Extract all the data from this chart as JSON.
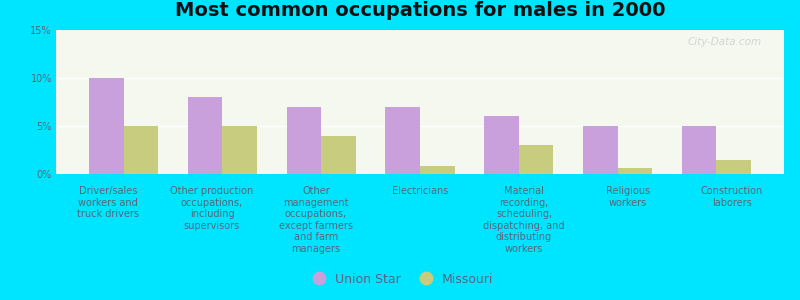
{
  "title": "Most common occupations for males in 2000",
  "categories": [
    "Driver/sales\nworkers and\ntruck drivers",
    "Other production\noccupations,\nincluding\nsupervisors",
    "Other\nmanagement\noccupations,\nexcept farmers\nand farm\nmanagers",
    "Electricians",
    "Material\nrecording,\nscheduling,\ndispatching, and\ndistributing\nworkers",
    "Religious\nworkers",
    "Construction\nlaborers"
  ],
  "union_star_values": [
    10.0,
    8.0,
    7.0,
    7.0,
    6.0,
    5.0,
    5.0
  ],
  "missouri_values": [
    5.0,
    5.0,
    4.0,
    0.8,
    3.0,
    0.6,
    1.5
  ],
  "union_star_color": "#c9a0dc",
  "missouri_color": "#c8cc7f",
  "background_outer": "#00e5ff",
  "background_plot_top": "#e8f0d8",
  "background_plot_bottom": "#f5f8ee",
  "ylim": [
    0,
    15
  ],
  "yticks": [
    0,
    5,
    10,
    15
  ],
  "ytick_labels": [
    "0%",
    "5%",
    "10%",
    "15%"
  ],
  "bar_width": 0.35,
  "legend_label_1": "Union Star",
  "legend_label_2": "Missouri",
  "title_fontsize": 14,
  "tick_fontsize": 7.0,
  "legend_fontsize": 9,
  "watermark": "City-Data.com"
}
